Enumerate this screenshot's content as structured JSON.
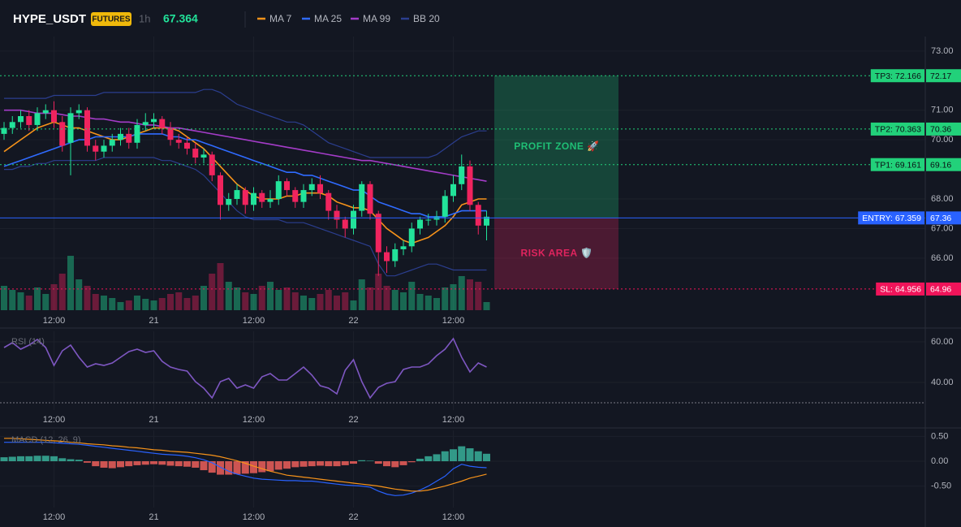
{
  "chart_data": [
    {
      "type": "candlestick",
      "title": "HYPE_USDT",
      "badge": "FUTURES",
      "interval": "1h",
      "last_price": 67.364,
      "categories": [
        null,
        null,
        null,
        null,
        null,
        null,
        "12:00",
        null,
        null,
        null,
        null,
        null,
        null,
        null,
        null,
        null,
        null,
        null,
        "21",
        null,
        null,
        null,
        null,
        null,
        null,
        null,
        null,
        null,
        null,
        null,
        "12:00",
        null,
        null,
        null,
        null,
        null,
        null,
        null,
        null,
        null,
        null,
        null,
        "22",
        null,
        null,
        null,
        null,
        null,
        null,
        null,
        null,
        null,
        null,
        null,
        "12:00",
        null,
        null,
        null,
        null
      ],
      "open": [
        70.2,
        70.4,
        70.6,
        70.8,
        70.5,
        70.9,
        71.0,
        70.6,
        69.9,
        70.9,
        71.0,
        69.8,
        69.6,
        69.8,
        70.0,
        70.2,
        69.9,
        70.5,
        70.6,
        70.7,
        70.4,
        70.0,
        69.9,
        69.7,
        69.4,
        69.5,
        68.8,
        67.8,
        68.0,
        68.3,
        67.8,
        68.2,
        67.9,
        68.0,
        68.6,
        68.3,
        67.9,
        68.3,
        68.5,
        68.2,
        67.6,
        67.3,
        67.0,
        67.6,
        68.5,
        67.5,
        66.2,
        65.9,
        66.3,
        66.4,
        67.0,
        67.3,
        67.3,
        67.4,
        68.1,
        68.5,
        69.1,
        67.8,
        67.1
      ],
      "high": [
        70.6,
        70.8,
        71.0,
        71.0,
        71.1,
        71.2,
        71.3,
        70.8,
        71.1,
        71.2,
        71.1,
        70.0,
        70.0,
        70.2,
        70.4,
        70.4,
        70.7,
        70.9,
        70.9,
        70.8,
        70.6,
        70.2,
        70.1,
        69.9,
        69.7,
        69.6,
        68.9,
        68.2,
        68.5,
        68.4,
        68.4,
        68.3,
        68.3,
        68.8,
        68.7,
        68.4,
        68.5,
        68.7,
        68.8,
        68.3,
        67.8,
        67.4,
        67.8,
        68.6,
        68.6,
        67.6,
        66.4,
        66.5,
        66.6,
        67.2,
        67.4,
        67.5,
        67.6,
        68.3,
        68.8,
        69.5,
        69.3,
        67.9,
        67.6
      ],
      "low": [
        70.0,
        70.2,
        70.4,
        70.3,
        70.3,
        70.7,
        70.4,
        69.6,
        68.8,
        70.7,
        69.6,
        69.3,
        69.4,
        69.6,
        69.8,
        69.7,
        69.7,
        70.3,
        70.4,
        70.2,
        69.8,
        69.7,
        69.5,
        69.2,
        69.2,
        68.6,
        67.3,
        67.6,
        67.8,
        67.5,
        67.6,
        67.7,
        67.7,
        67.8,
        68.1,
        67.7,
        67.7,
        68.1,
        68.0,
        67.3,
        67.0,
        66.7,
        66.8,
        67.4,
        67.3,
        65.4,
        65.5,
        65.7,
        66.1,
        66.2,
        66.8,
        67.1,
        67.1,
        67.2,
        67.9,
        68.3,
        67.6,
        66.8,
        66.6
      ],
      "close": [
        70.4,
        70.6,
        70.8,
        70.5,
        70.9,
        71.0,
        70.6,
        69.8,
        70.9,
        71.0,
        69.8,
        69.6,
        69.8,
        70.0,
        70.2,
        69.9,
        70.5,
        70.6,
        70.7,
        70.4,
        70.0,
        69.9,
        69.7,
        69.4,
        69.5,
        68.8,
        67.8,
        68.0,
        68.3,
        67.8,
        68.2,
        67.9,
        68.0,
        68.6,
        68.3,
        67.9,
        68.3,
        68.5,
        68.2,
        67.6,
        67.3,
        67.0,
        67.6,
        68.5,
        67.5,
        66.2,
        65.9,
        66.3,
        66.4,
        67.0,
        67.3,
        67.3,
        67.4,
        68.1,
        68.5,
        69.1,
        67.8,
        67.1,
        67.4
      ],
      "volume": [
        30,
        25,
        22,
        18,
        28,
        20,
        32,
        45,
        67,
        38,
        30,
        20,
        18,
        15,
        10,
        12,
        18,
        14,
        12,
        15,
        20,
        22,
        15,
        18,
        30,
        45,
        58,
        35,
        28,
        22,
        20,
        30,
        35,
        25,
        28,
        22,
        18,
        15,
        20,
        25,
        18,
        22,
        12,
        38,
        28,
        45,
        30,
        25,
        22,
        35,
        20,
        18,
        15,
        28,
        32,
        42,
        38,
        35,
        10
      ],
      "vlim": [
        0,
        100
      ],
      "up_color": "#22e39a",
      "down_color": "#f0245e",
      "series": [
        {
          "name": "MA 7",
          "color": "#f7931a",
          "values": [
            69.6,
            69.8,
            70.0,
            70.2,
            70.4,
            70.5,
            70.6,
            70.5,
            70.4,
            70.4,
            70.3,
            70.2,
            70.1,
            70.0,
            70.0,
            70.1,
            70.2,
            70.3,
            70.4,
            70.4,
            70.4,
            70.3,
            70.1,
            69.9,
            69.7,
            69.4,
            69.1,
            68.8,
            68.5,
            68.3,
            68.1,
            68.0,
            68.0,
            68.0,
            68.1,
            68.1,
            68.2,
            68.2,
            68.2,
            68.1,
            67.9,
            67.8,
            67.7,
            67.7,
            67.6,
            67.3,
            67.0,
            66.8,
            66.6,
            66.5,
            66.6,
            66.7,
            66.9,
            67.1,
            67.4,
            67.8,
            67.9,
            68.0,
            68.0
          ]
        },
        {
          "name": "MA 25",
          "color": "#2f6bff",
          "values": [
            69.1,
            69.2,
            69.3,
            69.4,
            69.5,
            69.6,
            69.7,
            69.8,
            69.9,
            70.0,
            70.0,
            70.1,
            70.1,
            70.1,
            70.1,
            70.1,
            70.2,
            70.2,
            70.2,
            70.2,
            70.1,
            70.1,
            70.0,
            70.0,
            69.9,
            69.8,
            69.7,
            69.6,
            69.5,
            69.4,
            69.3,
            69.2,
            69.1,
            69.0,
            68.9,
            68.9,
            68.8,
            68.8,
            68.7,
            68.6,
            68.5,
            68.4,
            68.3,
            68.3,
            68.1,
            67.9,
            67.8,
            67.7,
            67.6,
            67.5,
            67.5,
            67.4,
            67.4,
            67.4,
            67.5,
            67.6,
            67.6,
            67.6,
            67.6
          ]
        },
        {
          "name": "MA 99",
          "color": "#a43cc8",
          "values": [
            71.0,
            71.0,
            71.0,
            70.95,
            70.9,
            70.9,
            70.9,
            70.85,
            70.8,
            70.8,
            70.75,
            70.7,
            70.7,
            70.65,
            70.6,
            70.6,
            70.55,
            70.5,
            70.5,
            70.45,
            70.4,
            70.4,
            70.35,
            70.3,
            70.25,
            70.2,
            70.15,
            70.1,
            70.05,
            70.0,
            69.95,
            69.9,
            69.85,
            69.8,
            69.75,
            69.7,
            69.65,
            69.6,
            69.55,
            69.5,
            69.45,
            69.4,
            69.35,
            69.3,
            69.3,
            69.25,
            69.2,
            69.15,
            69.1,
            69.05,
            69.0,
            68.95,
            68.9,
            68.85,
            68.8,
            68.75,
            68.7,
            68.65,
            68.6
          ]
        },
        {
          "name": "BB 20",
          "color": "#2b3e8f",
          "upper": [
            71.4,
            71.4,
            71.4,
            71.4,
            71.4,
            71.4,
            71.5,
            71.5,
            71.5,
            71.5,
            71.5,
            71.5,
            71.6,
            71.6,
            71.6,
            71.6,
            71.6,
            71.6,
            71.6,
            71.6,
            71.6,
            71.6,
            71.6,
            71.6,
            71.7,
            71.7,
            71.6,
            71.4,
            71.2,
            71.1,
            71.0,
            70.9,
            70.8,
            70.7,
            70.6,
            70.6,
            70.5,
            70.3,
            70.1,
            69.9,
            69.8,
            69.7,
            69.6,
            69.5,
            69.4,
            69.4,
            69.4,
            69.4,
            69.4,
            69.4,
            69.4,
            69.4,
            69.5,
            69.7,
            69.9,
            70.1,
            70.2,
            70.3,
            70.3
          ],
          "lower": [
            69.0,
            69.0,
            69.1,
            69.1,
            69.2,
            69.2,
            69.3,
            69.3,
            69.3,
            69.3,
            69.3,
            69.3,
            69.4,
            69.4,
            69.4,
            69.4,
            69.4,
            69.4,
            69.4,
            69.3,
            69.3,
            69.2,
            69.1,
            69.0,
            68.8,
            68.5,
            68.2,
            67.9,
            67.6,
            67.4,
            67.3,
            67.3,
            67.3,
            67.3,
            67.2,
            67.2,
            67.2,
            67.1,
            67.0,
            66.9,
            66.8,
            66.7,
            66.6,
            66.5,
            66.4,
            65.8,
            65.4,
            65.4,
            65.5,
            65.6,
            65.7,
            65.8,
            65.8,
            65.7,
            65.6,
            65.6,
            65.6,
            65.6,
            65.6
          ]
        }
      ],
      "ylim": [
        64.24,
        73.49
      ],
      "yticks": [
        {
          "value": 73,
          "label": "73.00"
        },
        {
          "value": 71,
          "label": "71.00"
        },
        {
          "value": 70,
          "label": "70.00"
        },
        {
          "value": 68,
          "label": "68.00"
        },
        {
          "value": 67,
          "label": "67.00"
        },
        {
          "value": 66,
          "label": "66.00"
        }
      ],
      "levels": [
        {
          "label": "TP3: 72.166",
          "value": 72.166,
          "axis_label": "72.17",
          "color": "#22d17a",
          "text_color": "#0b0e14",
          "style": "dotted"
        },
        {
          "label": "TP2: 70.363",
          "value": 70.363,
          "axis_label": "70.36",
          "color": "#22d17a",
          "text_color": "#0b0e14",
          "style": "dotted"
        },
        {
          "label": "TP1: 69.161",
          "value": 69.161,
          "axis_label": "69.16",
          "color": "#22d17a",
          "text_color": "#0b0e14",
          "style": "dotted"
        },
        {
          "label": "ENTRY: 67.359",
          "value": 67.359,
          "axis_label": "67.36",
          "color": "#2962ff",
          "text_color": "#ffffff",
          "style": "solid"
        },
        {
          "label": "SL: 64.956",
          "value": 64.956,
          "axis_label": "64.96",
          "color": "#f0145a",
          "text_color": "#ffffff",
          "style": "dotted"
        }
      ],
      "zones": [
        {
          "label": "PROFIT ZONE 🚀",
          "color": "#1fbf75"
        },
        {
          "label": "RISK AREA 🛡️",
          "color": "#e0245e"
        }
      ]
    },
    {
      "type": "line",
      "title": "RSI (14)",
      "color": "#7e57c2",
      "values": [
        57.2,
        59.6,
        56.4,
        58.4,
        61.2,
        57.2,
        48.4,
        55.6,
        58.4,
        52.4,
        47.6,
        49.2,
        48.4,
        49.6,
        52.4,
        55.2,
        56.4,
        54.8,
        55.6,
        50.4,
        47.6,
        46.4,
        45.6,
        40.4,
        37.2,
        32.4,
        40.4,
        42.0,
        37.2,
        38.8,
        37.2,
        42.8,
        44.4,
        41.2,
        41.2,
        44.4,
        47.6,
        43.6,
        38.4,
        37.2,
        34.4,
        46.0,
        51.2,
        40.4,
        32.4,
        37.6,
        39.6,
        40.4,
        46.4,
        47.6,
        47.6,
        49.2,
        53.2,
        56.4,
        61.6,
        52.4,
        45.2,
        49.6,
        47.6
      ],
      "ylim": [
        26.4,
        65.2
      ],
      "yticks": [
        {
          "value": 60,
          "label": "60.00"
        },
        {
          "value": 40,
          "label": "40.00"
        }
      ],
      "guides": [
        30
      ]
    },
    {
      "type": "macd",
      "title": "MACD (12, 26, 9)",
      "histogram": [
        0.08,
        0.09,
        0.1,
        0.1,
        0.11,
        0.11,
        0.1,
        0.06,
        0.04,
        0.03,
        -0.03,
        -0.1,
        -0.13,
        -0.14,
        -0.12,
        -0.1,
        -0.08,
        -0.07,
        -0.06,
        -0.07,
        -0.09,
        -0.1,
        -0.11,
        -0.13,
        -0.18,
        -0.23,
        -0.27,
        -0.27,
        -0.26,
        -0.25,
        -0.24,
        -0.22,
        -0.2,
        -0.17,
        -0.15,
        -0.12,
        -0.11,
        -0.1,
        -0.09,
        -0.1,
        -0.1,
        -0.08,
        -0.05,
        0.02,
        0.01,
        -0.05,
        -0.1,
        -0.12,
        -0.08,
        -0.02,
        0.05,
        0.1,
        0.14,
        0.2,
        0.24,
        0.3,
        0.26,
        0.2,
        0.15
      ],
      "up_color": "#38b09a",
      "down_color": "#ef5f5a",
      "series": [
        {
          "color": "#2962ff",
          "values": [
            0.38,
            0.38,
            0.38,
            0.38,
            0.38,
            0.38,
            0.37,
            0.36,
            0.35,
            0.34,
            0.32,
            0.3,
            0.28,
            0.26,
            0.24,
            0.22,
            0.2,
            0.18,
            0.16,
            0.14,
            0.13,
            0.12,
            0.1,
            0.07,
            0.03,
            -0.03,
            -0.12,
            -0.2,
            -0.26,
            -0.3,
            -0.34,
            -0.36,
            -0.37,
            -0.38,
            -0.39,
            -0.39,
            -0.4,
            -0.4,
            -0.42,
            -0.44,
            -0.46,
            -0.48,
            -0.49,
            -0.5,
            -0.52,
            -0.6,
            -0.66,
            -0.69,
            -0.68,
            -0.64,
            -0.58,
            -0.5,
            -0.4,
            -0.3,
            -0.15,
            -0.06,
            -0.1,
            -0.12,
            -0.13
          ]
        },
        {
          "color": "#f7931a",
          "values": [
            0.46,
            0.46,
            0.45,
            0.44,
            0.43,
            0.42,
            0.41,
            0.4,
            0.38,
            0.37,
            0.35,
            0.34,
            0.33,
            0.31,
            0.3,
            0.28,
            0.27,
            0.25,
            0.23,
            0.22,
            0.2,
            0.19,
            0.18,
            0.16,
            0.14,
            0.12,
            0.09,
            0.05,
            0.01,
            -0.04,
            -0.1,
            -0.15,
            -0.2,
            -0.24,
            -0.28,
            -0.3,
            -0.32,
            -0.34,
            -0.36,
            -0.38,
            -0.4,
            -0.42,
            -0.44,
            -0.46,
            -0.48,
            -0.5,
            -0.53,
            -0.56,
            -0.58,
            -0.6,
            -0.6,
            -0.58,
            -0.54,
            -0.5,
            -0.45,
            -0.4,
            -0.34,
            -0.3,
            -0.26
          ]
        }
      ],
      "ylim": [
        -0.93,
        0.62
      ],
      "yticks": [
        {
          "value": 0.5,
          "label": "0.50"
        },
        {
          "value": 0,
          "label": "0.00"
        },
        {
          "value": -0.5,
          "label": "-0.50"
        }
      ]
    }
  ]
}
